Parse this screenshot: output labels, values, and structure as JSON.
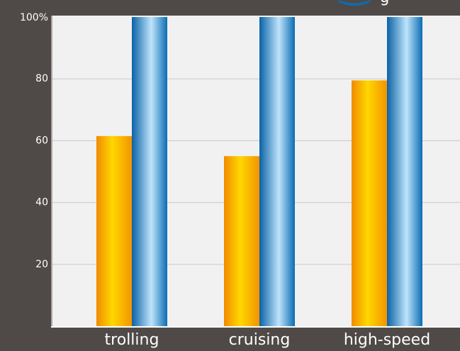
{
  "chart_data": {
    "type": "bar",
    "categories": [
      "trolling",
      "cruising",
      "high-speed"
    ],
    "series": [
      {
        "values": [
          61.5,
          55,
          79.5
        ]
      },
      {
        "values": [
          100,
          100,
          100
        ]
      }
    ],
    "ytick_labels": [
      "20",
      "40",
      "60",
      "80",
      "100%"
    ],
    "ytick_values": [
      20,
      40,
      60,
      80,
      100
    ],
    "ylim": [
      0,
      100
    ],
    "grid": true,
    "legend_fragment": "g",
    "colors": {
      "page_background": "#4f4a47",
      "plot_background": "#f1f1f1",
      "gridline": "#c9c9c9",
      "series_1_base": "#f29400",
      "series_1_highlight": "#ffd600",
      "series_2_base": "#0b6db3",
      "series_2_highlight": "#bfe4fb",
      "tick_text": "#ffffff",
      "axis_line": "#ffffff"
    }
  }
}
